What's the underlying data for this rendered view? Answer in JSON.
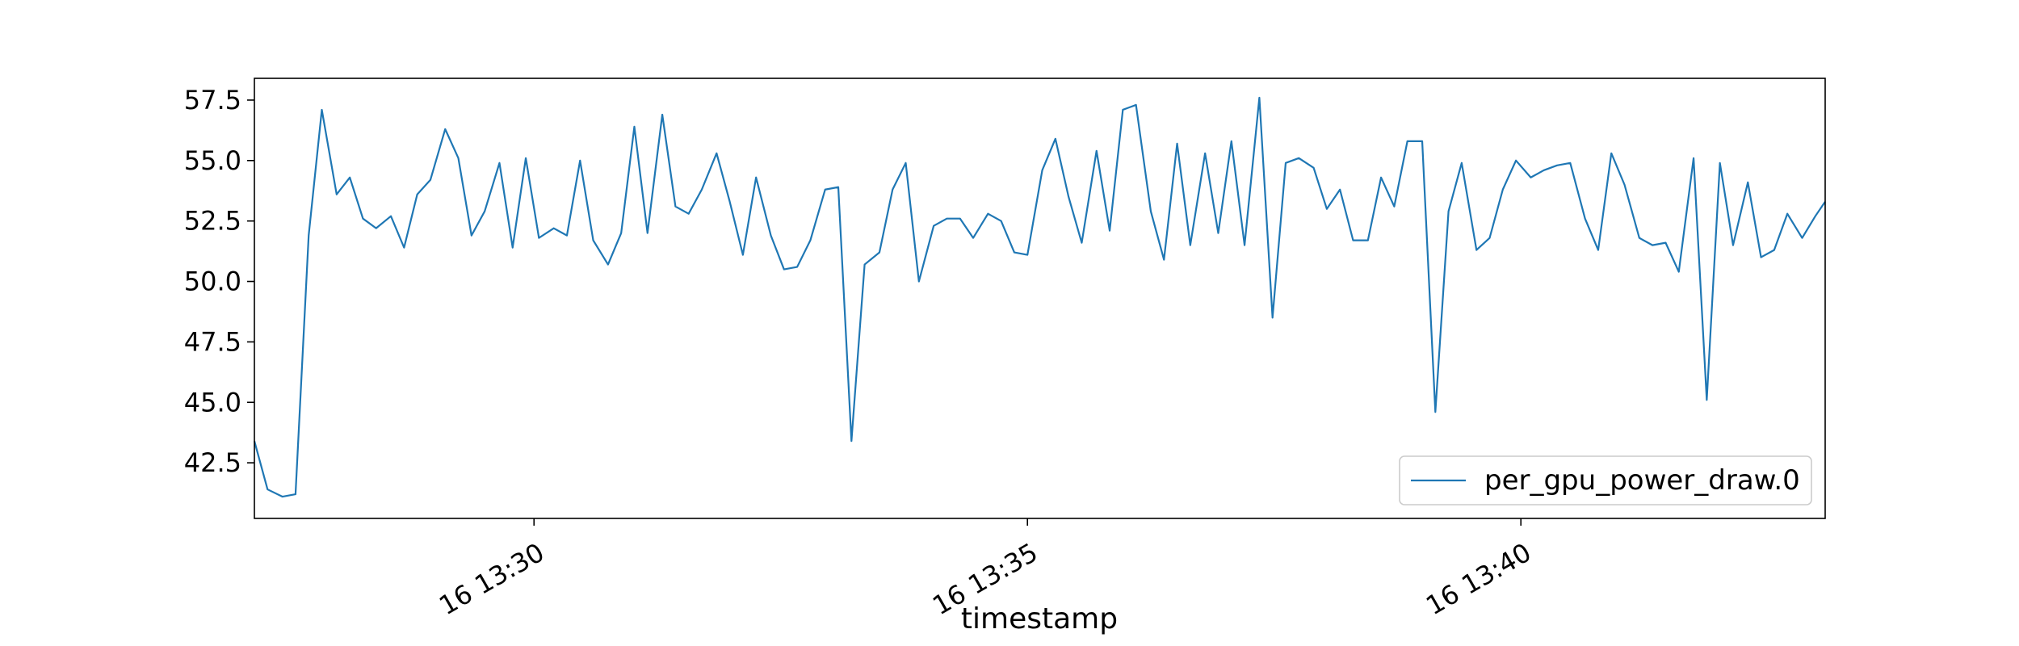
{
  "chart_data": {
    "type": "line",
    "xlabel": "timestamp",
    "ylabel": "",
    "x_range": [
      "16 13:27:10",
      "16 13:43:05"
    ],
    "ylim": [
      40.2,
      58.4
    ],
    "y_ticks": [
      42.5,
      45.0,
      47.5,
      50.0,
      52.5,
      55.0,
      57.5
    ],
    "y_tick_labels": [
      "42.5",
      "45.0",
      "47.5",
      "50.0",
      "52.5",
      "55.0",
      "57.5"
    ],
    "x_ticks": [
      "16 13:30",
      "16 13:35",
      "16 13:40"
    ],
    "grid": false,
    "legend_position": "bottom-right",
    "colors": {
      "series": "#1f77b4",
      "axes": "#000000",
      "legend_border": "#cccccc"
    },
    "series": [
      {
        "name": "per_gpu_power_draw.0",
        "points": [
          [
            "16 13:27:10",
            43.4
          ],
          [
            "16 13:27:18",
            41.4
          ],
          [
            "16 13:27:27",
            41.1
          ],
          [
            "16 13:27:35",
            41.2
          ],
          [
            "16 13:27:43",
            51.9
          ],
          [
            "16 13:27:51",
            57.1
          ],
          [
            "16 13:28:00",
            53.6
          ],
          [
            "16 13:28:08",
            54.3
          ],
          [
            "16 13:28:16",
            52.6
          ],
          [
            "16 13:28:24",
            52.2
          ],
          [
            "16 13:28:33",
            52.7
          ],
          [
            "16 13:28:41",
            51.4
          ],
          [
            "16 13:28:49",
            53.6
          ],
          [
            "16 13:28:57",
            54.2
          ],
          [
            "16 13:29:06",
            56.3
          ],
          [
            "16 13:29:14",
            55.1
          ],
          [
            "16 13:29:22",
            51.9
          ],
          [
            "16 13:29:30",
            52.9
          ],
          [
            "16 13:29:39",
            54.9
          ],
          [
            "16 13:29:47",
            51.4
          ],
          [
            "16 13:29:55",
            55.1
          ],
          [
            "16 13:30:03",
            51.8
          ],
          [
            "16 13:30:12",
            52.2
          ],
          [
            "16 13:30:20",
            51.9
          ],
          [
            "16 13:30:28",
            55.0
          ],
          [
            "16 13:30:36",
            51.7
          ],
          [
            "16 13:30:45",
            50.7
          ],
          [
            "16 13:30:53",
            52.0
          ],
          [
            "16 13:31:01",
            56.4
          ],
          [
            "16 13:31:09",
            52.0
          ],
          [
            "16 13:31:18",
            56.9
          ],
          [
            "16 13:31:26",
            53.1
          ],
          [
            "16 13:31:34",
            52.8
          ],
          [
            "16 13:31:42",
            53.8
          ],
          [
            "16 13:31:51",
            55.3
          ],
          [
            "16 13:31:59",
            53.3
          ],
          [
            "16 13:32:07",
            51.1
          ],
          [
            "16 13:32:15",
            54.3
          ],
          [
            "16 13:32:24",
            51.9
          ],
          [
            "16 13:32:32",
            50.5
          ],
          [
            "16 13:32:40",
            50.6
          ],
          [
            "16 13:32:48",
            51.7
          ],
          [
            "16 13:32:57",
            53.8
          ],
          [
            "16 13:33:05",
            53.9
          ],
          [
            "16 13:33:13",
            43.4
          ],
          [
            "16 13:33:21",
            50.7
          ],
          [
            "16 13:33:30",
            51.2
          ],
          [
            "16 13:33:38",
            53.8
          ],
          [
            "16 13:33:46",
            54.9
          ],
          [
            "16 13:33:54",
            50.0
          ],
          [
            "16 13:34:03",
            52.3
          ],
          [
            "16 13:34:11",
            52.6
          ],
          [
            "16 13:34:19",
            52.6
          ],
          [
            "16 13:34:27",
            51.8
          ],
          [
            "16 13:34:36",
            52.8
          ],
          [
            "16 13:34:44",
            52.5
          ],
          [
            "16 13:34:52",
            51.2
          ],
          [
            "16 13:35:00",
            51.1
          ],
          [
            "16 13:35:09",
            54.6
          ],
          [
            "16 13:35:17",
            55.9
          ],
          [
            "16 13:35:25",
            53.5
          ],
          [
            "16 13:35:33",
            51.6
          ],
          [
            "16 13:35:42",
            55.4
          ],
          [
            "16 13:35:50",
            52.1
          ],
          [
            "16 13:35:58",
            57.1
          ],
          [
            "16 13:36:06",
            57.3
          ],
          [
            "16 13:36:15",
            52.9
          ],
          [
            "16 13:36:23",
            50.9
          ],
          [
            "16 13:36:31",
            55.7
          ],
          [
            "16 13:36:39",
            51.5
          ],
          [
            "16 13:36:48",
            55.3
          ],
          [
            "16 13:36:56",
            52.0
          ],
          [
            "16 13:37:04",
            55.8
          ],
          [
            "16 13:37:12",
            51.5
          ],
          [
            "16 13:37:21",
            57.6
          ],
          [
            "16 13:37:29",
            48.5
          ],
          [
            "16 13:37:37",
            54.9
          ],
          [
            "16 13:37:45",
            55.1
          ],
          [
            "16 13:37:54",
            54.7
          ],
          [
            "16 13:38:02",
            53.0
          ],
          [
            "16 13:38:10",
            53.8
          ],
          [
            "16 13:38:18",
            51.7
          ],
          [
            "16 13:38:27",
            51.7
          ],
          [
            "16 13:38:35",
            54.3
          ],
          [
            "16 13:38:43",
            53.1
          ],
          [
            "16 13:38:51",
            55.8
          ],
          [
            "16 13:39:00",
            55.8
          ],
          [
            "16 13:39:08",
            44.6
          ],
          [
            "16 13:39:16",
            52.9
          ],
          [
            "16 13:39:24",
            54.9
          ],
          [
            "16 13:39:33",
            51.3
          ],
          [
            "16 13:39:41",
            51.8
          ],
          [
            "16 13:39:49",
            53.8
          ],
          [
            "16 13:39:57",
            55.0
          ],
          [
            "16 13:40:06",
            54.3
          ],
          [
            "16 13:40:14",
            54.6
          ],
          [
            "16 13:40:22",
            54.8
          ],
          [
            "16 13:40:30",
            54.9
          ],
          [
            "16 13:40:39",
            52.6
          ],
          [
            "16 13:40:47",
            51.3
          ],
          [
            "16 13:40:55",
            55.3
          ],
          [
            "16 13:41:03",
            54.0
          ],
          [
            "16 13:41:12",
            51.8
          ],
          [
            "16 13:41:20",
            51.5
          ],
          [
            "16 13:41:28",
            51.6
          ],
          [
            "16 13:41:36",
            50.4
          ],
          [
            "16 13:41:45",
            55.1
          ],
          [
            "16 13:41:53",
            45.1
          ],
          [
            "16 13:42:01",
            54.9
          ],
          [
            "16 13:42:09",
            51.5
          ],
          [
            "16 13:42:18",
            54.1
          ],
          [
            "16 13:42:26",
            51.0
          ],
          [
            "16 13:42:34",
            51.3
          ],
          [
            "16 13:42:42",
            52.8
          ],
          [
            "16 13:42:51",
            51.8
          ],
          [
            "16 13:42:59",
            52.7
          ],
          [
            "16 13:43:05",
            53.3
          ]
        ]
      }
    ]
  }
}
